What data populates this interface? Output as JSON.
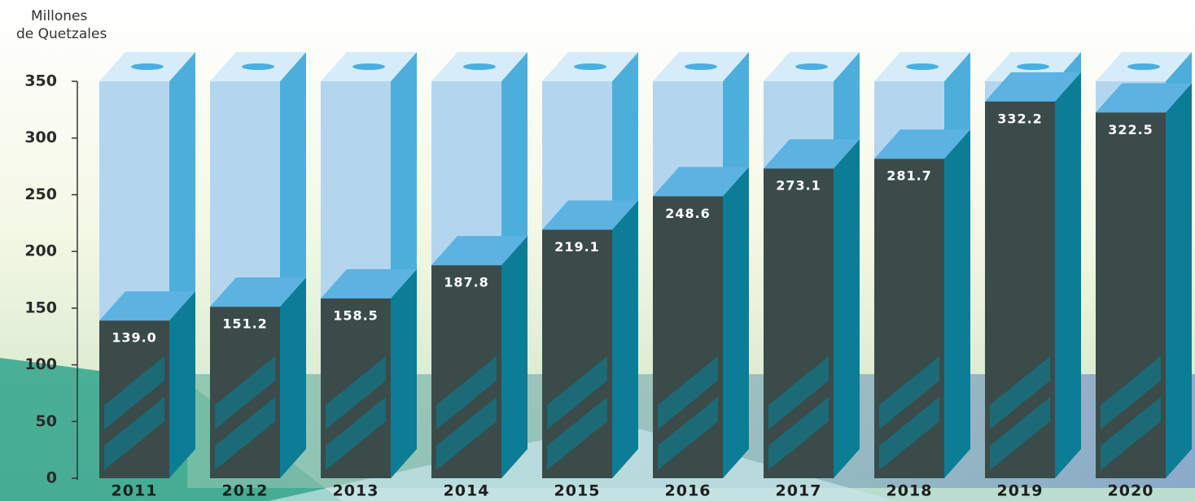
{
  "chart_data": {
    "type": "bar3d",
    "y_label": [
      "Millones",
      "de Quetzales"
    ],
    "categories": [
      "2011",
      "2012",
      "2013",
      "2014",
      "2015",
      "2016",
      "2017",
      "2018",
      "2019",
      "2020"
    ],
    "values": [
      139.0,
      151.2,
      158.5,
      187.8,
      219.1,
      248.6,
      273.1,
      281.7,
      332.2,
      322.5
    ],
    "value_labels": [
      "139.0",
      "151.2",
      "158.5",
      "187.8",
      "219.1",
      "248.6",
      "273.1",
      "281.7",
      "332.2",
      "322.5"
    ],
    "color": "#3a4b4a",
    "ylim": [
      0,
      350
    ],
    "yticks": [
      0,
      50,
      100,
      150,
      200,
      250,
      300,
      350
    ]
  }
}
